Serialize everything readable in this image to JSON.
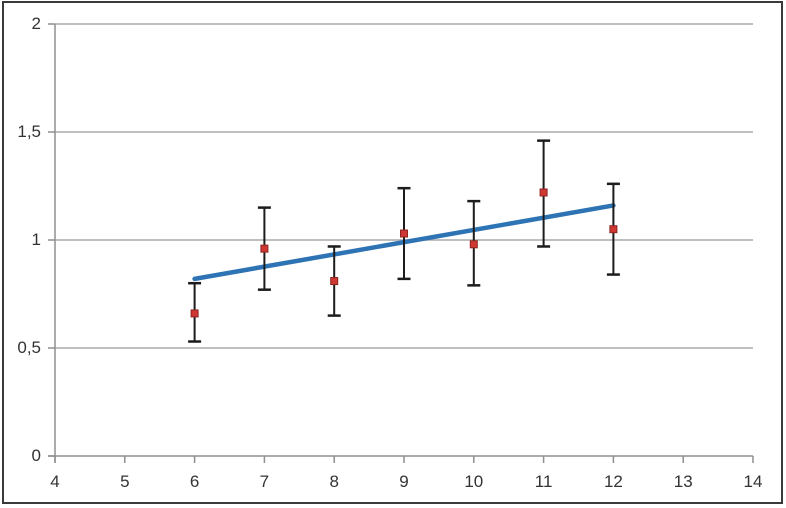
{
  "chart_data": {
    "type": "scatter",
    "title": "",
    "subtitle": "",
    "legend": "none",
    "grid": "horizontal",
    "xlim": [
      4,
      14
    ],
    "ylim": [
      0,
      2
    ],
    "x_ticks": {
      "values": [
        4,
        5,
        6,
        7,
        8,
        9,
        10,
        11,
        12,
        13,
        14
      ],
      "labels": [
        "4",
        "5",
        "6",
        "7",
        "8",
        "9",
        "10",
        "11",
        "12",
        "13",
        "14"
      ]
    },
    "y_ticks": {
      "values": [
        0,
        0.5,
        1,
        1.5,
        2
      ],
      "labels": [
        "0",
        "0,5",
        "1",
        "1,5",
        "2"
      ]
    },
    "x": [
      6,
      7,
      8,
      9,
      10,
      11,
      12
    ],
    "series": [
      {
        "name": "data-points-with-error-bars",
        "marker": "red-square",
        "values": [
          0.66,
          0.96,
          0.81,
          1.03,
          0.98,
          1.22,
          1.05
        ],
        "error_plus": [
          0.14,
          0.19,
          0.16,
          0.21,
          0.2,
          0.24,
          0.21
        ],
        "error_minus": [
          0.13,
          0.19,
          0.16,
          0.21,
          0.19,
          0.25,
          0.21
        ]
      }
    ],
    "trendline": {
      "x1": 6,
      "y1": 0.82,
      "x2": 12,
      "y2": 1.16
    },
    "colors": {
      "background": "#ffffff",
      "frame_border": "#3a3a3a",
      "gridline": "#aaaaaa",
      "axis": "#8f8f8f",
      "tick_label": "#333333",
      "error_bar": "#1c1c1c",
      "marker_fill": "#cf3733",
      "marker_border": "#8e241f",
      "trendline": "#2e74b5"
    }
  }
}
